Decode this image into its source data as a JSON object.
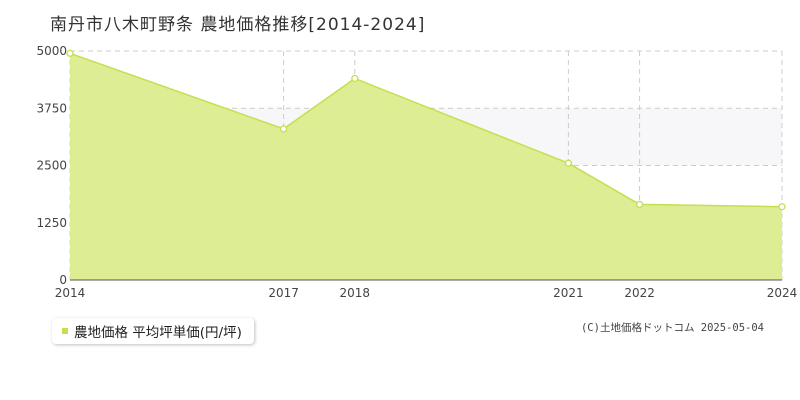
{
  "title": "南丹市八木町野条 農地価格推移[2014-2024]",
  "legend": {
    "label": "農地価格 平均坪単価(円/坪)"
  },
  "credit": "(C)土地価格ドットコム 2025-05-04",
  "colors": {
    "fill": "#dced94",
    "line": "#c3e04e",
    "grid": "#cccccc",
    "band": "#f7f7f9",
    "axis": "#555555"
  },
  "chart_data": {
    "type": "area",
    "x": [
      2014,
      2017,
      2018,
      2021,
      2022,
      2024
    ],
    "series": [
      {
        "name": "農地価格 平均坪単価(円/坪)",
        "values": [
          4950,
          3300,
          4400,
          2550,
          1650,
          1600
        ]
      }
    ],
    "yticks": [
      0,
      1250,
      2500,
      3750,
      5000
    ],
    "ylim": [
      0,
      5000
    ],
    "grid": true,
    "legend_position": "bottom-left"
  }
}
